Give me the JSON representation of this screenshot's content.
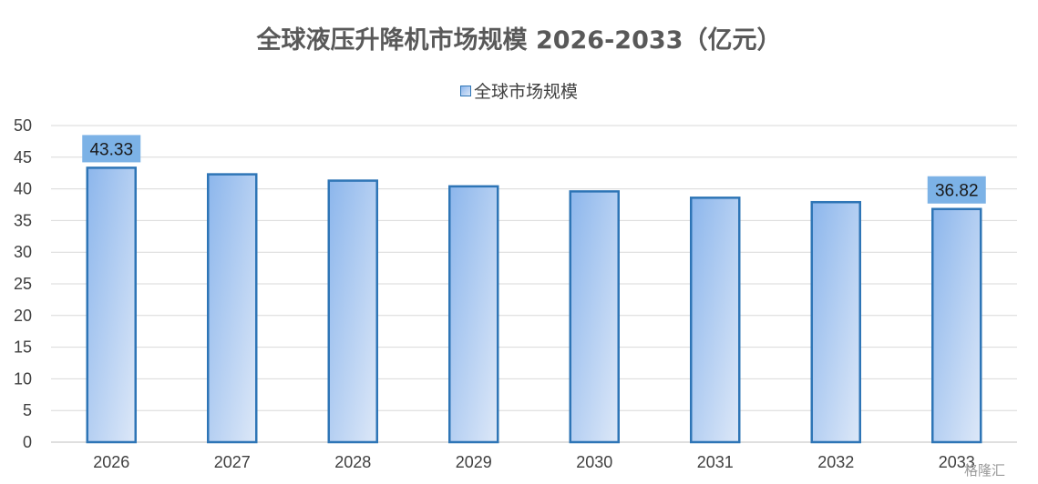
{
  "chart_data": {
    "type": "bar",
    "title": "全球液压升降机市场规模 2026-2033（亿元）",
    "categories": [
      "2026",
      "2027",
      "2028",
      "2029",
      "2030",
      "2031",
      "2032",
      "2033"
    ],
    "series": [
      {
        "name": "全球市场规模",
        "values": [
          43.33,
          42.3,
          41.3,
          40.4,
          39.6,
          38.6,
          37.9,
          36.82
        ]
      }
    ],
    "data_labels": [
      {
        "category": "2026",
        "text": "43.33"
      },
      {
        "category": "2033",
        "text": "36.82"
      }
    ],
    "yticks": [
      "0",
      "5",
      "10",
      "15",
      "20",
      "25",
      "30",
      "35",
      "40",
      "45",
      "50"
    ],
    "ylim": [
      0,
      50
    ],
    "xlabel": "",
    "ylabel": "",
    "grid": true,
    "legend_position": "top",
    "colors": {
      "bar_top": "#8cb6ec",
      "bar_bottom": "#dde8f8",
      "bar_border": "#2e75b6",
      "label_bg": "#7cb2e6",
      "grid": "#d9d9d9"
    }
  },
  "watermark": "格隆汇"
}
